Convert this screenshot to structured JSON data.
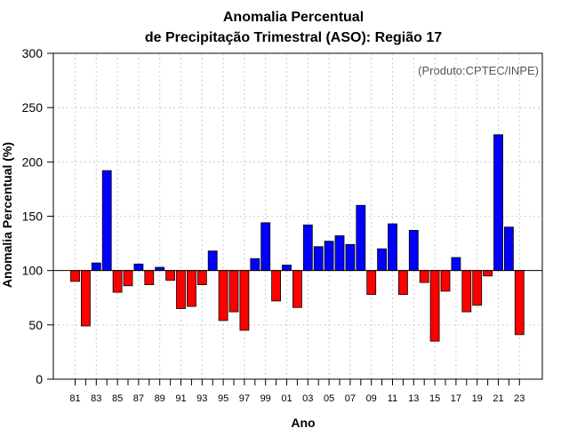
{
  "chart_data": {
    "type": "bar",
    "title_line1": "Anomalia Percentual",
    "title_line2": "de Precipitação Trimestral (ASO): Região 17",
    "xlabel": "Ano",
    "ylabel": "Anomalia Percentual (%)",
    "credit": "(Produto:CPTEC/INPE)",
    "baseline": 100,
    "ylim": [
      0,
      300
    ],
    "yticks": [
      0,
      50,
      100,
      150,
      200,
      250,
      300
    ],
    "ytick_labels": [
      "0",
      "50",
      "100",
      "150",
      "200",
      "250",
      "300"
    ],
    "grid": true,
    "categories": [
      "81",
      "82",
      "83",
      "84",
      "85",
      "86",
      "87",
      "88",
      "89",
      "90",
      "91",
      "92",
      "93",
      "94",
      "95",
      "96",
      "97",
      "98",
      "99",
      "00",
      "01",
      "02",
      "03",
      "04",
      "05",
      "06",
      "07",
      "08",
      "09",
      "10",
      "11",
      "12",
      "13",
      "14",
      "15",
      "16",
      "17",
      "18",
      "19",
      "20",
      "21",
      "22",
      "23"
    ],
    "values": [
      90,
      49,
      107,
      192,
      80,
      86,
      106,
      87,
      103,
      91,
      65,
      67,
      87,
      118,
      54,
      62,
      45,
      111,
      144,
      72,
      105,
      66,
      142,
      122,
      127,
      132,
      124,
      160,
      78,
      120,
      143,
      78,
      137,
      89,
      35,
      81,
      112,
      62,
      68,
      95,
      225,
      140,
      41
    ],
    "xtick_labels": [
      "81",
      "83",
      "85",
      "87",
      "89",
      "91",
      "93",
      "95",
      "97",
      "99",
      "01",
      "03",
      "05",
      "07",
      "09",
      "11",
      "13",
      "15",
      "17",
      "19",
      "21",
      "23"
    ],
    "colors": {
      "positive": "#0000ff",
      "negative": "#ff0000",
      "baseline": "#000000",
      "grid": "#cccccc"
    }
  }
}
